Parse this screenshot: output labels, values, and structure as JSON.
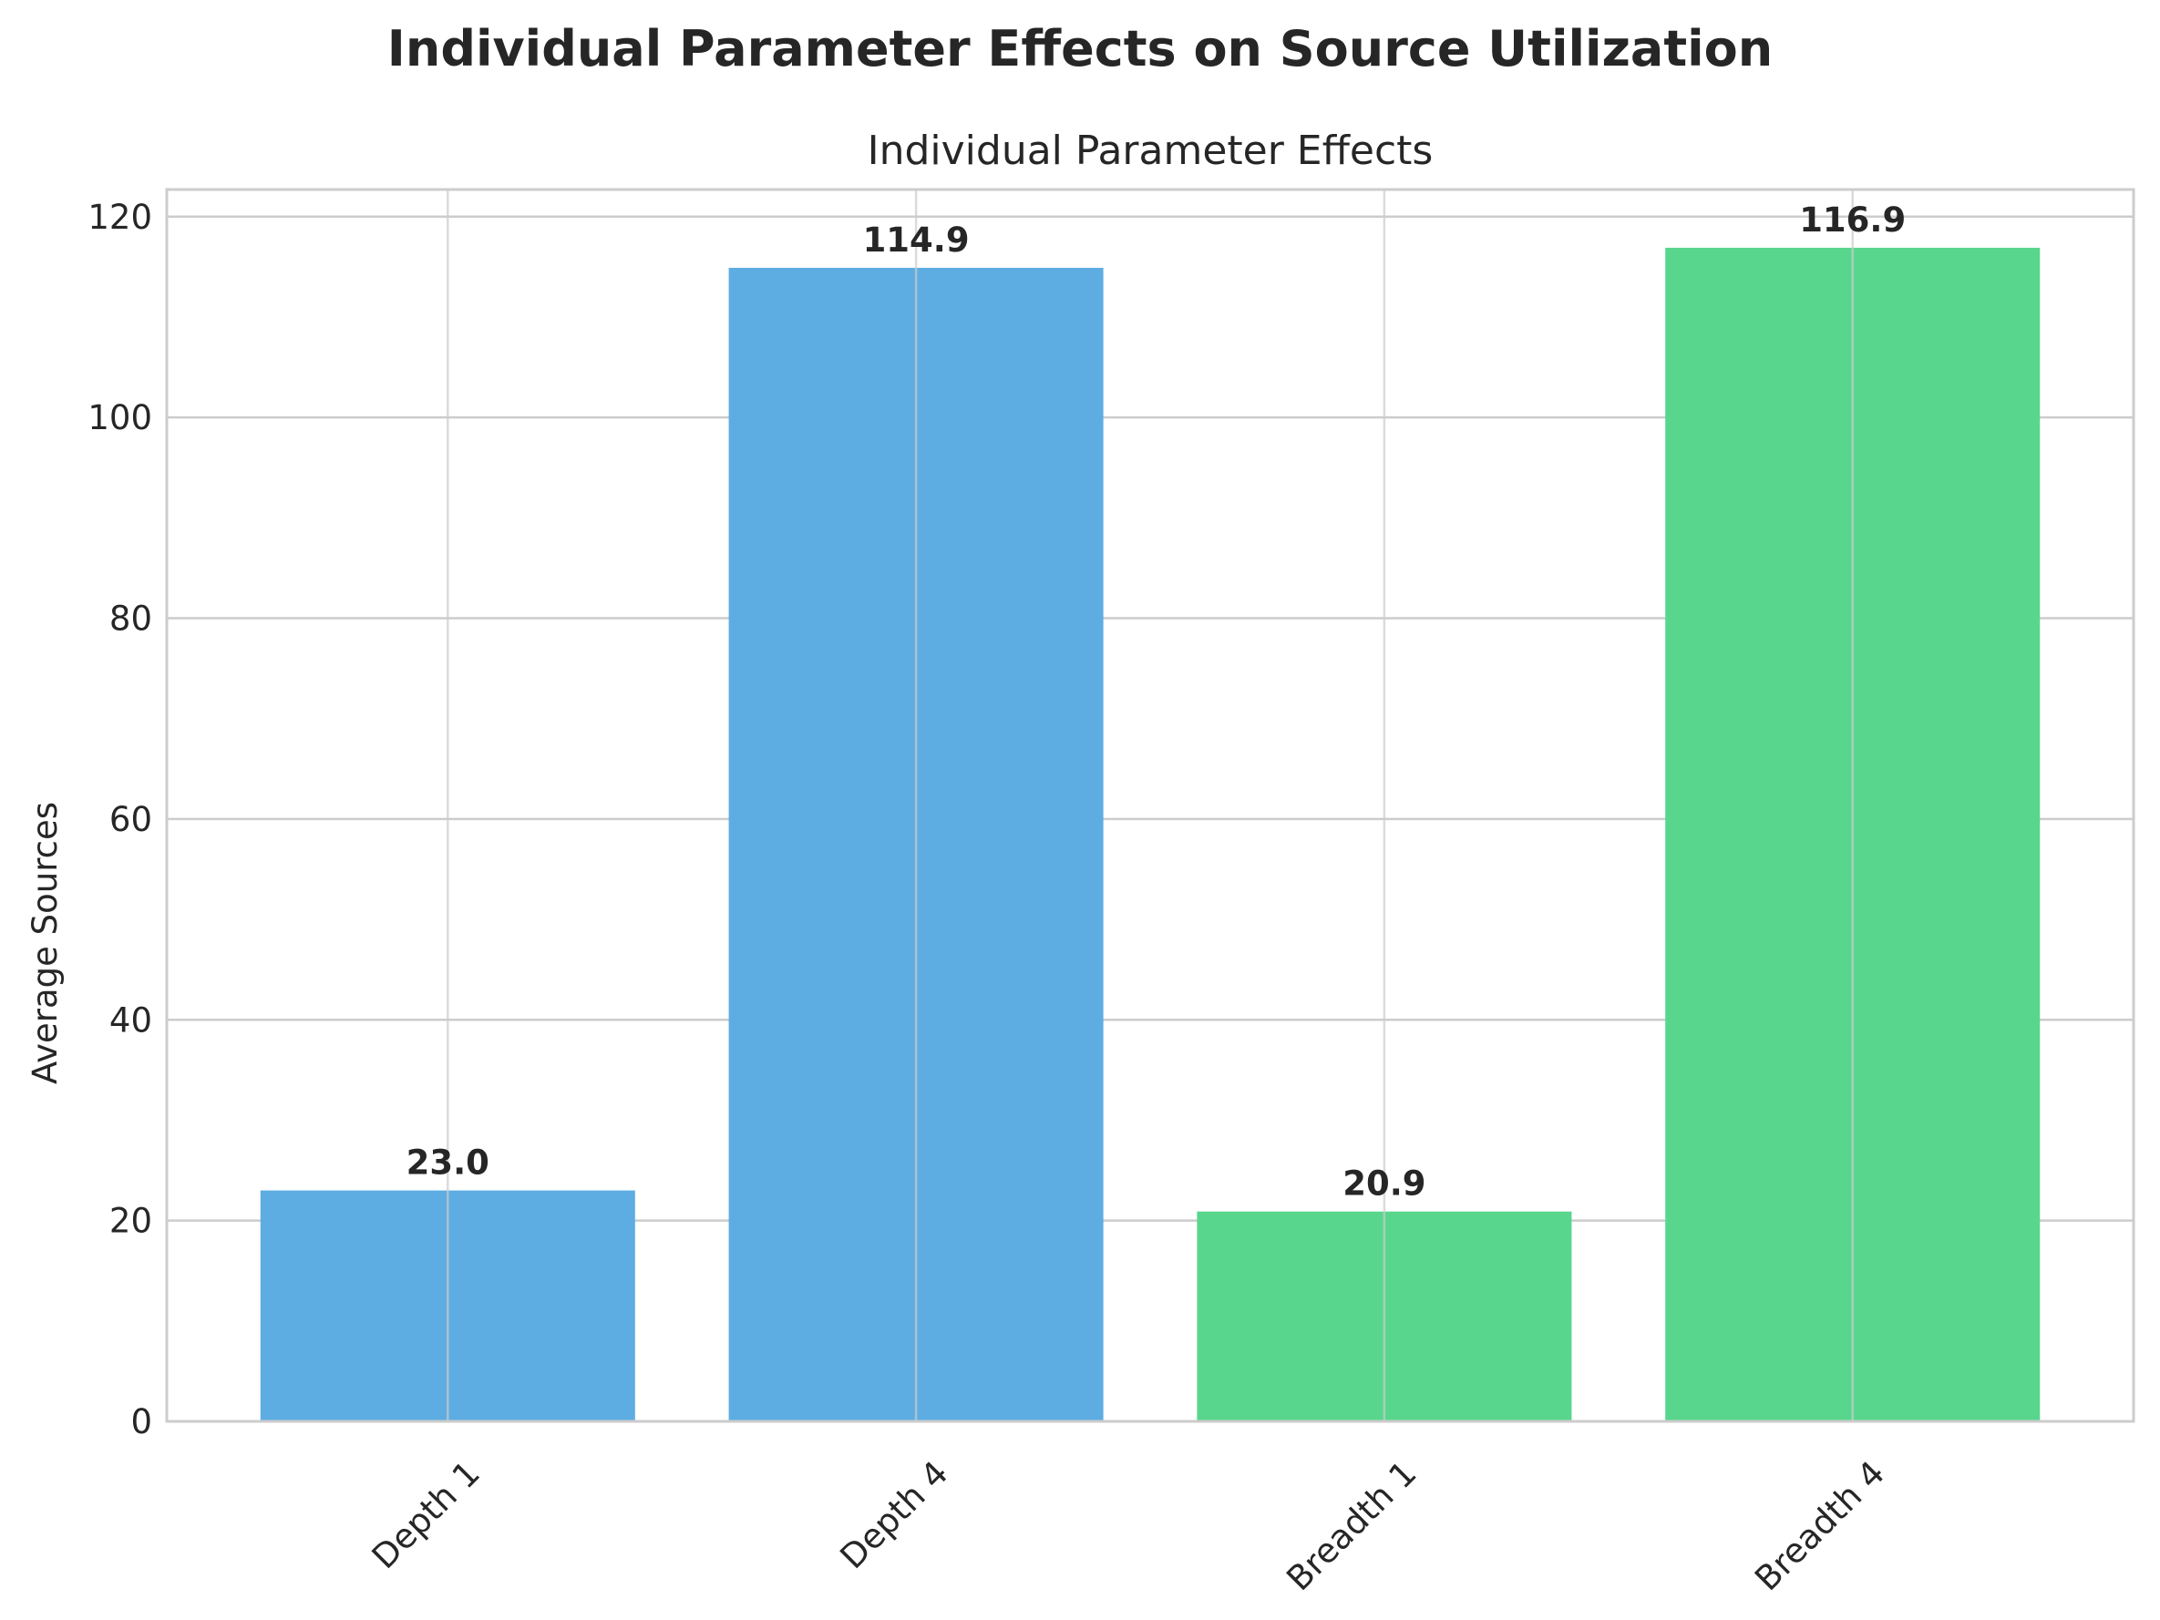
{
  "figure_title": "Individual Parameter Effects on Source Utilization",
  "chart_data": {
    "type": "bar",
    "title": "Individual Parameter Effects",
    "xlabel": "",
    "ylabel": "Average Sources",
    "categories": [
      "Depth 1",
      "Depth 4",
      "Breadth 1",
      "Breadth 4"
    ],
    "values": [
      23.0,
      114.9,
      20.9,
      116.9
    ],
    "value_labels": [
      "23.0",
      "114.9",
      "20.9",
      "116.9"
    ],
    "bar_colors": [
      "#5dade2",
      "#5dade2",
      "#58d68d",
      "#58d68d"
    ],
    "ylim": [
      0,
      122.7
    ],
    "yticks": [
      0,
      20,
      40,
      60,
      80,
      100,
      120
    ],
    "grid": true,
    "legend": "none"
  }
}
